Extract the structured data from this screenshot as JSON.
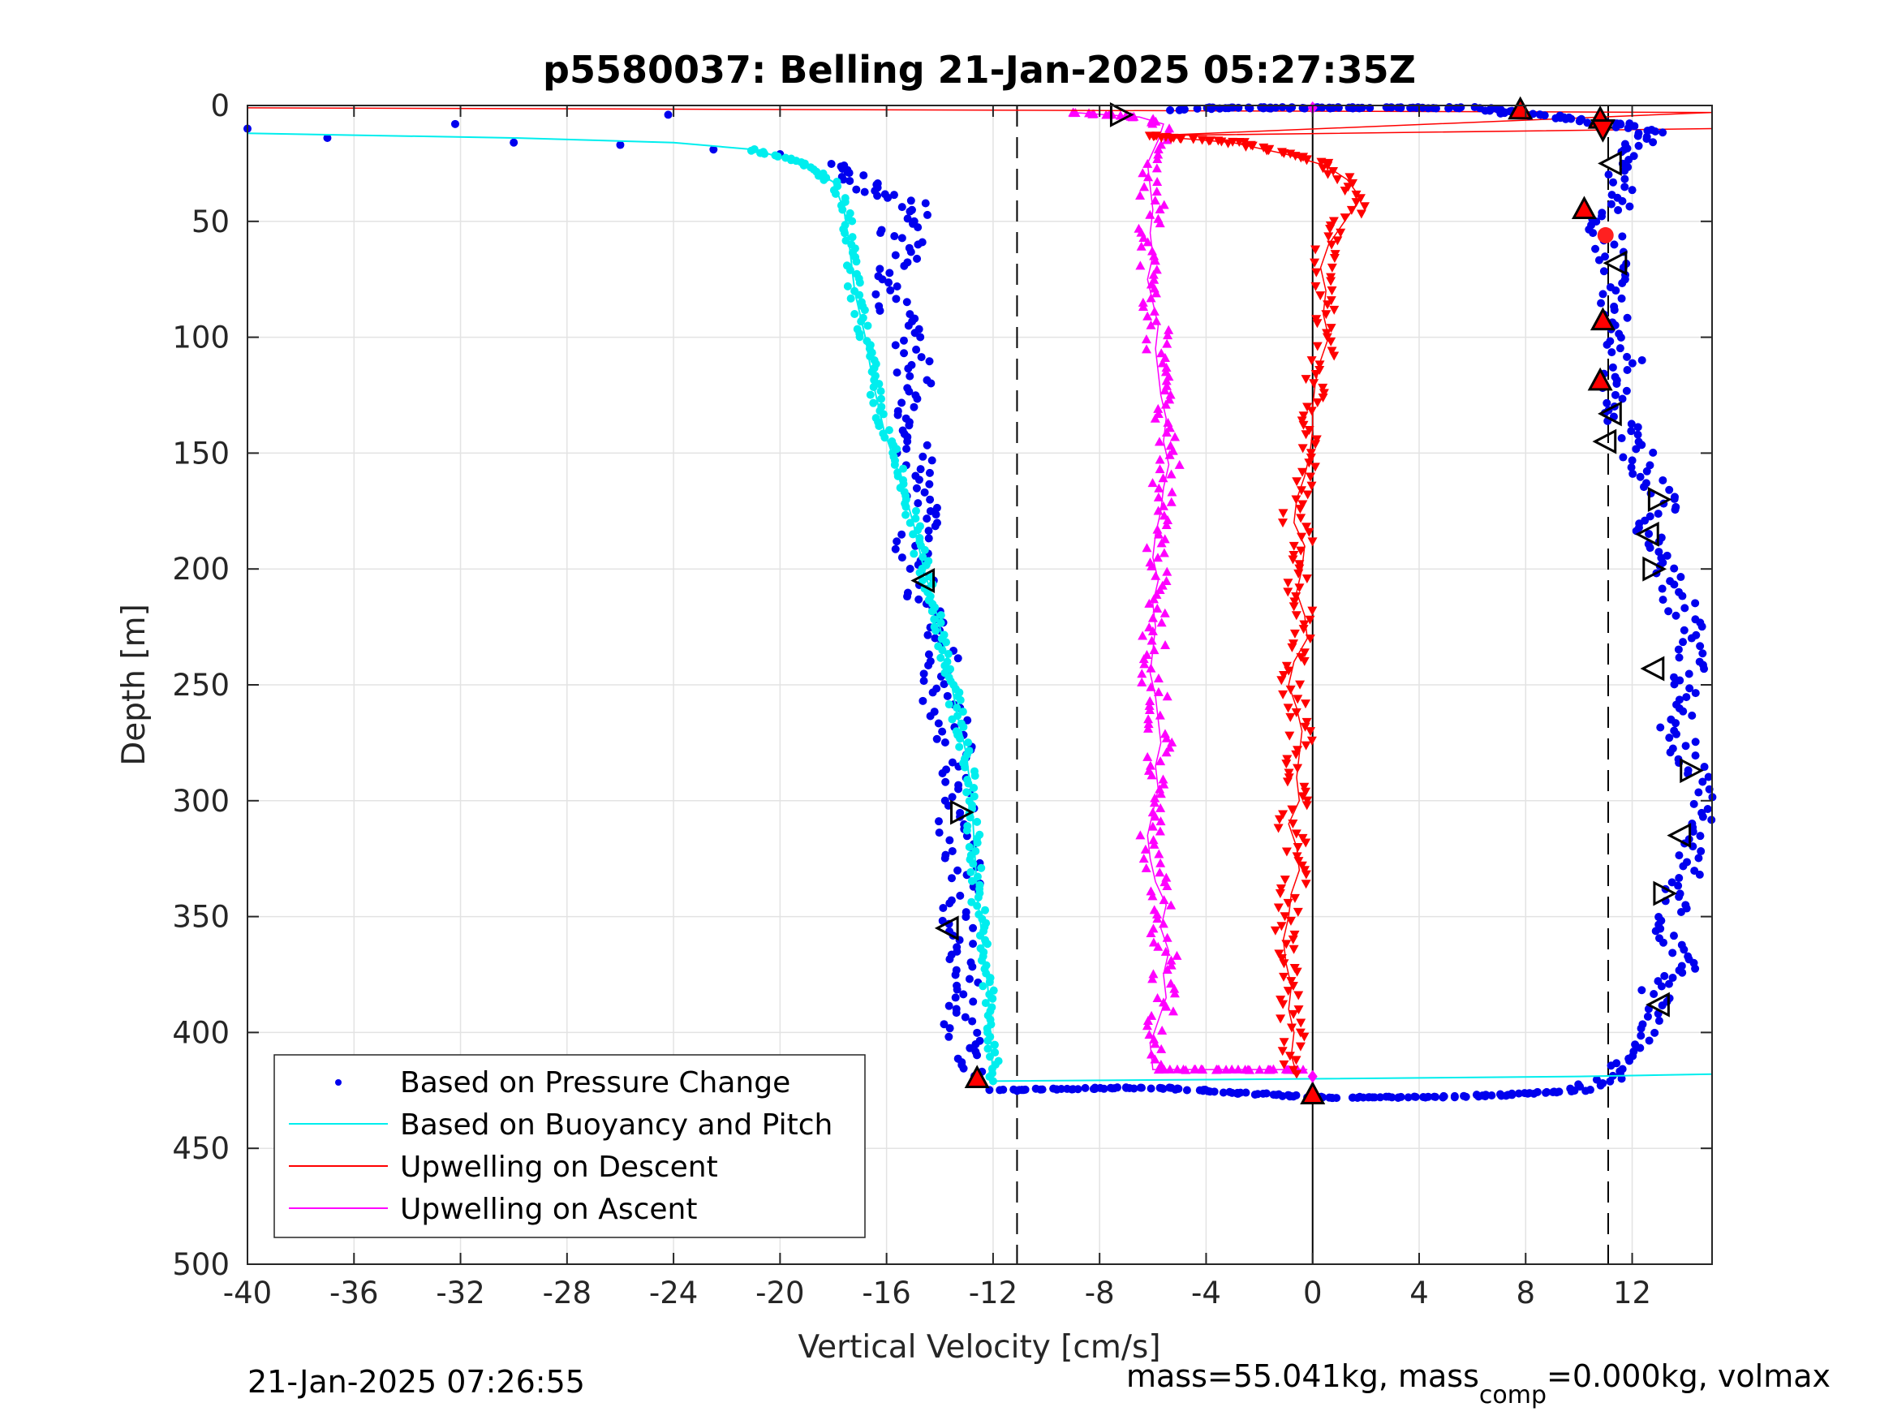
{
  "chart_data": {
    "type": "scatter",
    "title": "p5580037: Belling 21-Jan-2025 05:27:35Z",
    "xlabel": "Vertical Velocity [cm/s]",
    "ylabel": "Depth [m]",
    "xlim": [
      -40,
      15
    ],
    "ylim": [
      0,
      500
    ],
    "y_reversed": true,
    "grid": true,
    "x_ticks": [
      -40,
      -36,
      -32,
      -28,
      -24,
      -20,
      -16,
      -12,
      -8,
      -4,
      0,
      4,
      8,
      12
    ],
    "x_tick_labels": [
      "-40",
      "-36",
      "-32",
      "-28",
      "-24",
      "-20",
      "-16",
      "-12",
      "-8",
      "-4",
      "0",
      "4",
      "8",
      "12"
    ],
    "y_ticks": [
      0,
      50,
      100,
      150,
      200,
      250,
      300,
      350,
      400,
      450,
      500
    ],
    "y_tick_labels": [
      "0",
      "50",
      "100",
      "150",
      "200",
      "250",
      "300",
      "350",
      "400",
      "450",
      "500"
    ],
    "reference_lines": [
      {
        "x": 0,
        "style": "solid",
        "color": "#000000"
      },
      {
        "x": -11.1,
        "style": "dashed",
        "color": "#000000"
      },
      {
        "x": 11.1,
        "style": "dashed",
        "color": "#000000"
      }
    ],
    "legend_position": "bottom-left",
    "legend": [
      {
        "label": "Based on Pressure Change",
        "marker": "dot",
        "color": "#0000ee"
      },
      {
        "label": "Based on Buoyancy and Pitch",
        "marker": "line",
        "color": "#00eeee"
      },
      {
        "label": "Upwelling on Descent",
        "marker": "line",
        "color": "#ff0000"
      },
      {
        "label": "Upwelling on Ascent",
        "marker": "line",
        "color": "#ff00ff"
      }
    ],
    "series": [
      {
        "name": "Based on Pressure Change",
        "style": "dots",
        "color": "#0000ee",
        "descent": [
          [
            -40,
            10
          ],
          [
            -37,
            14
          ],
          [
            -32.2,
            8
          ],
          [
            -30,
            16
          ],
          [
            -26,
            17
          ],
          [
            -24.2,
            4
          ],
          [
            -22.5,
            19
          ],
          [
            -20,
            21
          ],
          [
            -18.3,
            25
          ],
          [
            -17.4,
            30
          ],
          [
            -16.3,
            37
          ],
          [
            -15.4,
            40
          ],
          [
            -14.8,
            46
          ],
          [
            -15.6,
            55
          ],
          [
            -15.2,
            60
          ],
          [
            -15.9,
            75
          ],
          [
            -15.6,
            90
          ],
          [
            -15.4,
            100
          ],
          [
            -15,
            112
          ],
          [
            -14.8,
            125
          ],
          [
            -15.3,
            140
          ],
          [
            -14.8,
            160
          ],
          [
            -14.5,
            175
          ],
          [
            -15,
            190
          ],
          [
            -14.8,
            205
          ],
          [
            -14.5,
            220
          ],
          [
            -13.9,
            240
          ],
          [
            -14,
            255
          ],
          [
            -13.5,
            270
          ],
          [
            -13.2,
            290
          ],
          [
            -13.5,
            312
          ],
          [
            -13.1,
            330
          ],
          [
            -13.3,
            350
          ],
          [
            -13,
            365
          ],
          [
            -12.9,
            380
          ],
          [
            -13.2,
            395
          ],
          [
            -13.1,
            410
          ],
          [
            -12.6,
            420
          ]
        ],
        "ascent": [
          [
            -11.8,
            425
          ],
          [
            -8,
            424
          ],
          [
            -5.5,
            424
          ],
          [
            -3,
            426
          ],
          [
            -1,
            427
          ],
          [
            0,
            428
          ],
          [
            4,
            428
          ],
          [
            7,
            427
          ],
          [
            10,
            425
          ],
          [
            11.3,
            419
          ],
          [
            12.3,
            410
          ],
          [
            12.5,
            395
          ],
          [
            13,
            380
          ],
          [
            14,
            370
          ],
          [
            13.2,
            355
          ],
          [
            13.8,
            340
          ],
          [
            14.3,
            320
          ],
          [
            14.6,
            305
          ],
          [
            14.5,
            290
          ],
          [
            13.6,
            270
          ],
          [
            14,
            250
          ],
          [
            14.4,
            230
          ],
          [
            13.8,
            215
          ],
          [
            13.2,
            200
          ],
          [
            12.5,
            185
          ],
          [
            13.3,
            170
          ],
          [
            12.3,
            155
          ],
          [
            12.1,
            145
          ],
          [
            11.3,
            130
          ],
          [
            11.3,
            120
          ],
          [
            11.8,
            110
          ],
          [
            11.5,
            100
          ],
          [
            11.2,
            90
          ],
          [
            11.6,
            75
          ],
          [
            11.1,
            60
          ],
          [
            10.9,
            50
          ],
          [
            11.7,
            40
          ],
          [
            11.3,
            30
          ],
          [
            11.6,
            20
          ],
          [
            12.8,
            12
          ],
          [
            11.5,
            8
          ],
          [
            9,
            5
          ],
          [
            6,
            1
          ],
          [
            2,
            1
          ],
          [
            0,
            1
          ],
          [
            -3.5,
            1
          ],
          [
            -5,
            2
          ]
        ]
      },
      {
        "name": "Based on Buoyancy and Pitch",
        "style": "line",
        "color": "#00eeee",
        "values": [
          [
            -40,
            12
          ],
          [
            -30,
            14
          ],
          [
            -24,
            16
          ],
          [
            -21,
            19
          ],
          [
            -19.2,
            25
          ],
          [
            -18,
            33
          ],
          [
            -17.6,
            45
          ],
          [
            -17.4,
            60
          ],
          [
            -17.2,
            80
          ],
          [
            -16.8,
            100
          ],
          [
            -16.5,
            120
          ],
          [
            -16.1,
            140
          ],
          [
            -15.5,
            160
          ],
          [
            -15.0,
            180
          ],
          [
            -14.6,
            200
          ],
          [
            -14.1,
            220
          ],
          [
            -13.7,
            240
          ],
          [
            -13.4,
            260
          ],
          [
            -13.0,
            280
          ],
          [
            -12.8,
            300
          ],
          [
            -12.7,
            320
          ],
          [
            -12.6,
            340
          ],
          [
            -12.4,
            360
          ],
          [
            -12.2,
            380
          ],
          [
            -12.1,
            400
          ],
          [
            -12.0,
            421
          ],
          [
            0,
            420
          ],
          [
            10,
            419
          ],
          [
            15,
            418
          ]
        ]
      },
      {
        "name": "Upwelling on Descent",
        "style": "triangle-down",
        "color": "#ff0000",
        "values": [
          [
            -40,
            1
          ],
          [
            15,
            3
          ],
          [
            -6,
            13
          ],
          [
            15,
            10
          ],
          [
            -6.2,
            13
          ],
          [
            -3,
            16
          ],
          [
            -1,
            21
          ],
          [
            0.5,
            26
          ],
          [
            1.3,
            32
          ],
          [
            1.8,
            40
          ],
          [
            1.2,
            50
          ],
          [
            0.6,
            60
          ],
          [
            0.3,
            70
          ],
          [
            0.5,
            80
          ],
          [
            0.4,
            90
          ],
          [
            0.6,
            100
          ],
          [
            0.3,
            110
          ],
          [
            0.1,
            120
          ],
          [
            0,
            130
          ],
          [
            0,
            140
          ],
          [
            -0.1,
            150
          ],
          [
            -0.3,
            160
          ],
          [
            -0.6,
            170
          ],
          [
            -0.7,
            180
          ],
          [
            -0.3,
            190
          ],
          [
            -0.4,
            200
          ],
          [
            -0.6,
            210
          ],
          [
            -0.3,
            220
          ],
          [
            -0.2,
            230
          ],
          [
            -0.7,
            240
          ],
          [
            -0.9,
            250
          ],
          [
            -0.6,
            260
          ],
          [
            -0.4,
            270
          ],
          [
            -0.5,
            280
          ],
          [
            -0.6,
            290
          ],
          [
            -0.5,
            300
          ],
          [
            -0.9,
            310
          ],
          [
            -0.6,
            320
          ],
          [
            -0.5,
            330
          ],
          [
            -0.8,
            340
          ],
          [
            -0.9,
            350
          ],
          [
            -1.1,
            360
          ],
          [
            -1.0,
            370
          ],
          [
            -0.8,
            380
          ],
          [
            -0.9,
            390
          ],
          [
            -0.7,
            400
          ],
          [
            -0.8,
            410
          ],
          [
            -0.6,
            418
          ]
        ]
      },
      {
        "name": "Upwelling on Ascent",
        "style": "triangle-up",
        "color": "#ff00ff",
        "values": [
          [
            -0.2,
            416
          ],
          [
            -6.0,
            416
          ],
          [
            -6.1,
            405
          ],
          [
            -5.8,
            395
          ],
          [
            -5.5,
            385
          ],
          [
            -5.6,
            375
          ],
          [
            -5.4,
            365
          ],
          [
            -5.7,
            355
          ],
          [
            -5.5,
            345
          ],
          [
            -5.9,
            335
          ],
          [
            -6.1,
            325
          ],
          [
            -6.2,
            315
          ],
          [
            -6.0,
            305
          ],
          [
            -5.8,
            295
          ],
          [
            -5.9,
            285
          ],
          [
            -5.7,
            275
          ],
          [
            -5.8,
            265
          ],
          [
            -5.9,
            255
          ],
          [
            -6.1,
            245
          ],
          [
            -6.0,
            235
          ],
          [
            -5.9,
            225
          ],
          [
            -6.0,
            215
          ],
          [
            -5.8,
            205
          ],
          [
            -6.0,
            195
          ],
          [
            -5.9,
            185
          ],
          [
            -5.7,
            175
          ],
          [
            -5.6,
            165
          ],
          [
            -5.4,
            155
          ],
          [
            -5.6,
            145
          ],
          [
            -5.5,
            135
          ],
          [
            -5.7,
            125
          ],
          [
            -5.8,
            115
          ],
          [
            -5.9,
            105
          ],
          [
            -5.8,
            95
          ],
          [
            -6.0,
            85
          ],
          [
            -6.2,
            75
          ],
          [
            -6.0,
            65
          ],
          [
            -6.1,
            55
          ],
          [
            -6.0,
            45
          ],
          [
            -6.1,
            35
          ],
          [
            -6.2,
            25
          ],
          [
            -5.8,
            15
          ],
          [
            -5.6,
            8
          ],
          [
            -6.5,
            5
          ],
          [
            -9,
            3
          ]
        ]
      }
    ],
    "event_markers": [
      {
        "type": "triangle-left-open",
        "points": [
          [
            11.2,
            25
          ],
          [
            11.4,
            68
          ],
          [
            11.2,
            133
          ],
          [
            11.0,
            145
          ],
          [
            12.6,
            185
          ],
          [
            12.8,
            243
          ],
          [
            13.8,
            315
          ],
          [
            13.0,
            388
          ],
          [
            -14.6,
            205
          ],
          [
            -13.7,
            355
          ]
        ]
      },
      {
        "type": "triangle-right-open",
        "points": [
          [
            -7.2,
            4
          ],
          [
            13.0,
            170
          ],
          [
            12.8,
            200
          ],
          [
            14.2,
            287
          ],
          [
            13.2,
            340
          ],
          [
            -13.2,
            305
          ]
        ]
      },
      {
        "type": "triangle-up-red",
        "points": [
          [
            7.8,
            2
          ],
          [
            10.8,
            6
          ],
          [
            10.2,
            45
          ],
          [
            10.9,
            93
          ],
          [
            10.8,
            119
          ],
          [
            -12.6,
            420
          ],
          [
            0,
            427
          ]
        ]
      },
      {
        "type": "triangle-down-red",
        "points": [
          [
            10.9,
            10
          ]
        ]
      },
      {
        "type": "circle-red",
        "points": [
          [
            11.0,
            56
          ]
        ]
      },
      {
        "type": "diamond-magenta",
        "points": [
          [
            0,
            1
          ],
          [
            0,
            419
          ]
        ]
      }
    ]
  },
  "footer": {
    "left": "21-Jan-2025 07:26:55",
    "right_prefix": "mass=55.041kg, mass",
    "right_sub": "comp",
    "right_suffix": "=0.000kg, volmax"
  }
}
